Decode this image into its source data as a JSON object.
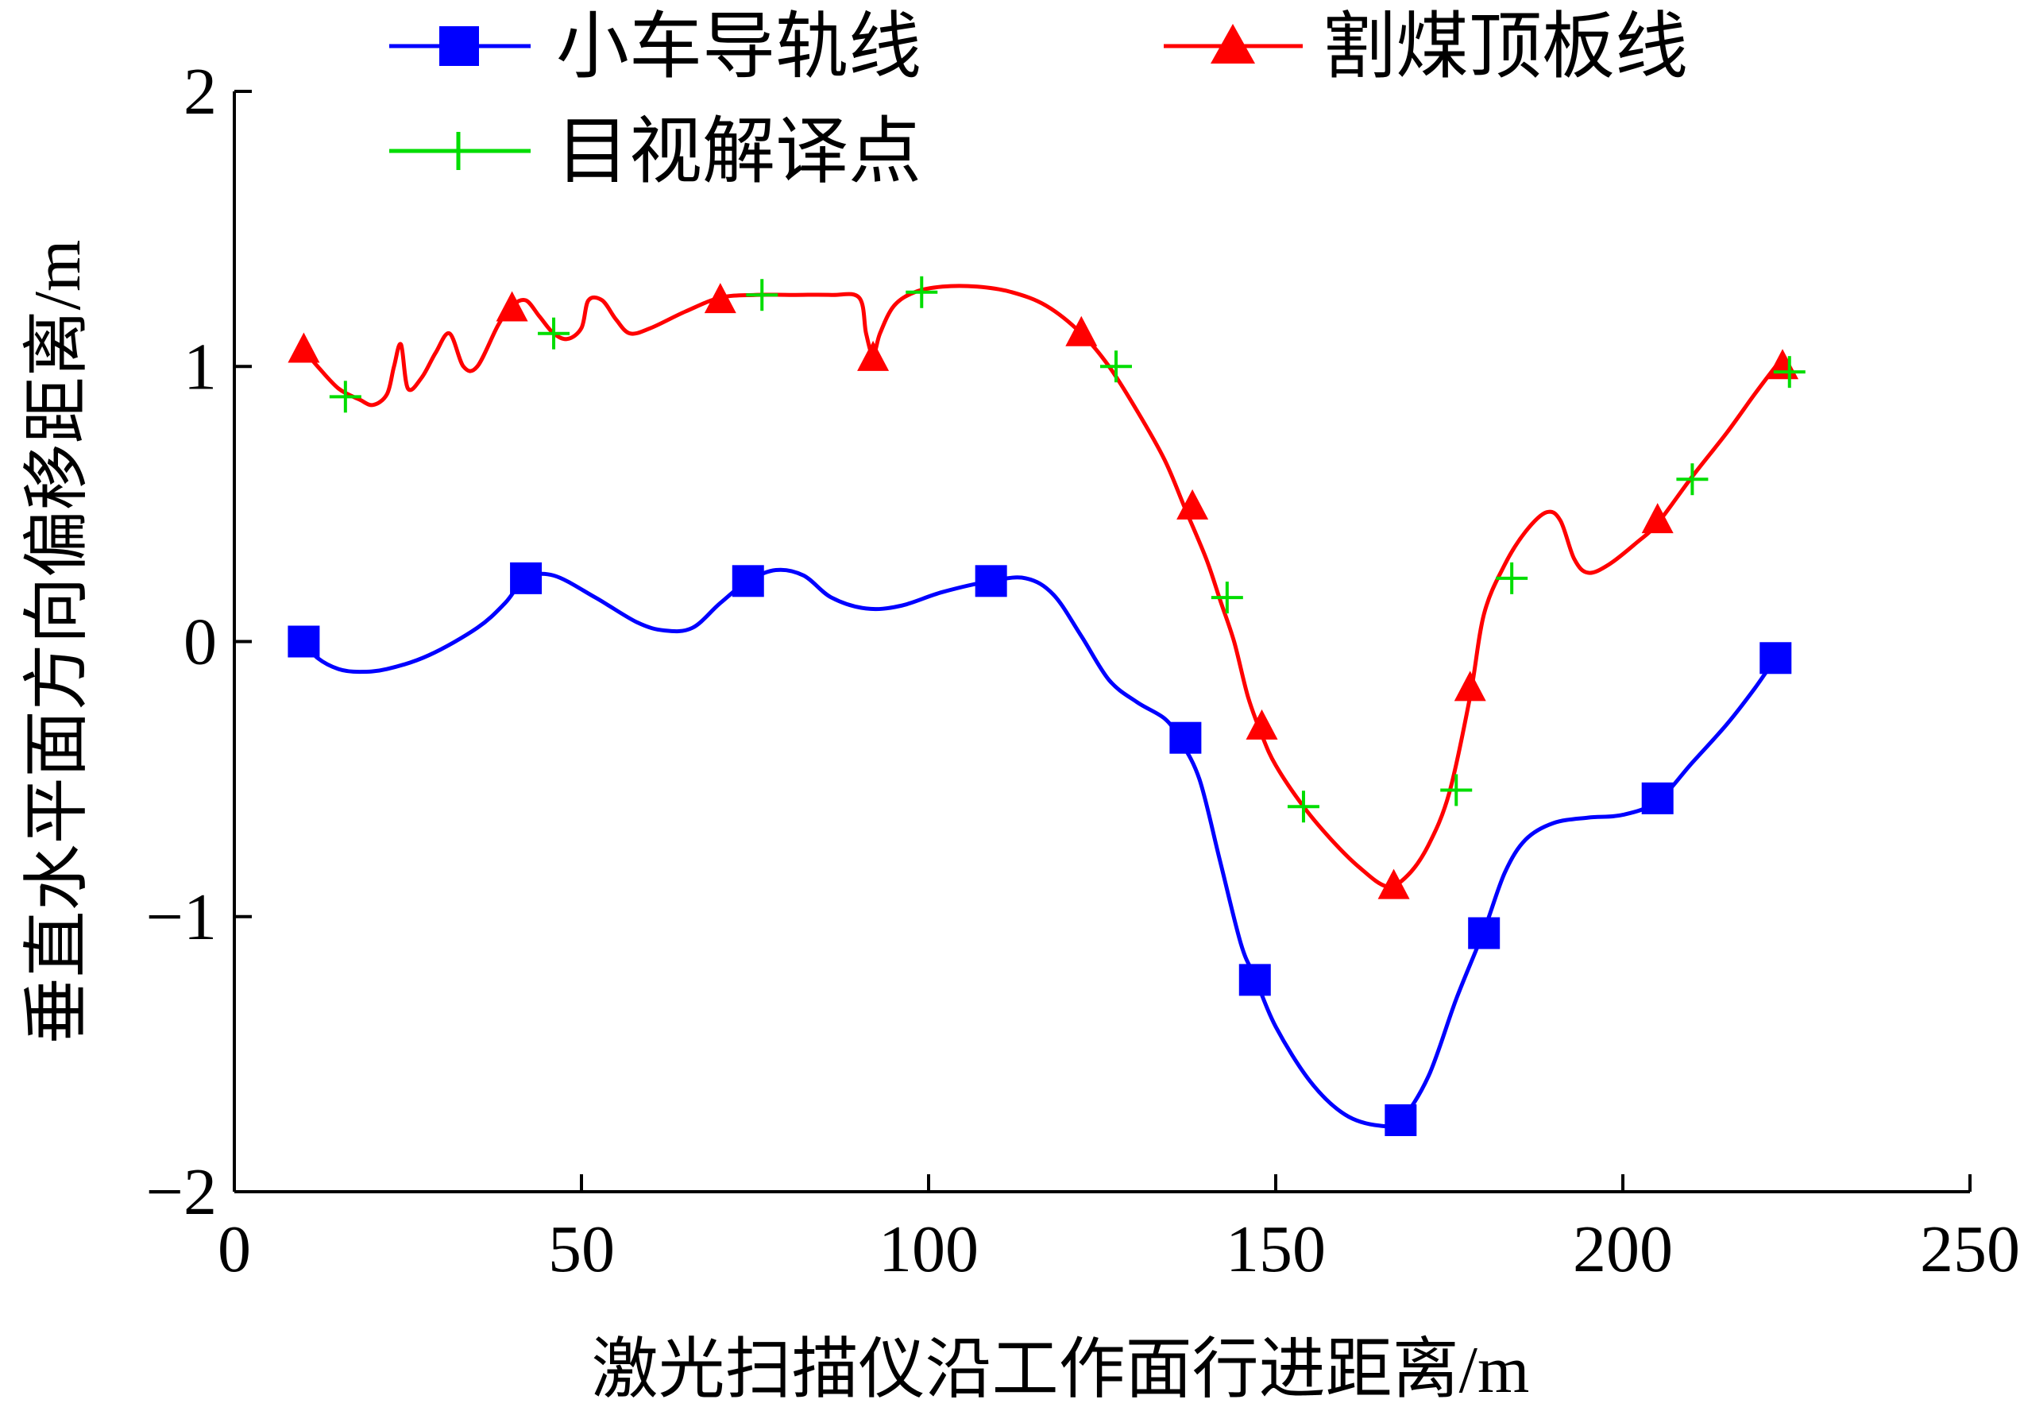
{
  "chart_data": {
    "type": "line",
    "xlabel": "激光扫描仪沿工作面行进距离/m",
    "ylabel": "垂直水平面方向偏移距离/m",
    "xlim": [
      0,
      250
    ],
    "ylim": [
      -2,
      2
    ],
    "xticks": [
      0,
      50,
      100,
      150,
      200,
      250
    ],
    "xtick_labels": [
      "0",
      "50",
      "100",
      "150",
      "200",
      "250"
    ],
    "yticks": [
      -2,
      -1,
      0,
      1,
      2
    ],
    "ytick_labels": [
      "−2",
      "−1",
      "0",
      "1",
      "2"
    ],
    "grid": false,
    "legend_position": "top",
    "series": [
      {
        "name": "小车导轨线",
        "color": "#0000ff",
        "marker": "square",
        "curve": [
          [
            10,
            0
          ],
          [
            12,
            -0.06
          ],
          [
            15,
            -0.1
          ],
          [
            18,
            -0.11
          ],
          [
            22,
            -0.1
          ],
          [
            28,
            -0.05
          ],
          [
            35,
            0.05
          ],
          [
            39,
            0.14
          ],
          [
            42,
            0.23
          ],
          [
            46,
            0.24
          ],
          [
            52,
            0.16
          ],
          [
            58,
            0.07
          ],
          [
            62,
            0.04
          ],
          [
            66,
            0.05
          ],
          [
            70,
            0.14
          ],
          [
            74,
            0.22
          ],
          [
            78,
            0.26
          ],
          [
            82,
            0.24
          ],
          [
            86,
            0.16
          ],
          [
            91,
            0.12
          ],
          [
            96,
            0.13
          ],
          [
            102,
            0.18
          ],
          [
            109,
            0.22
          ],
          [
            114,
            0.23
          ],
          [
            118,
            0.17
          ],
          [
            122,
            0.02
          ],
          [
            126,
            -0.14
          ],
          [
            130,
            -0.22
          ],
          [
            134,
            -0.28
          ],
          [
            136,
            -0.35
          ],
          [
            139,
            -0.5
          ],
          [
            142,
            -0.8
          ],
          [
            145,
            -1.1
          ],
          [
            147,
            -1.22
          ],
          [
            150,
            -1.4
          ],
          [
            155,
            -1.6
          ],
          [
            160,
            -1.72
          ],
          [
            165,
            -1.76
          ],
          [
            168,
            -1.74
          ],
          [
            172,
            -1.58
          ],
          [
            176,
            -1.3
          ],
          [
            180,
            -1.05
          ],
          [
            183,
            -0.84
          ],
          [
            186,
            -0.72
          ],
          [
            190,
            -0.66
          ],
          [
            195,
            -0.64
          ],
          [
            200,
            -0.63
          ],
          [
            205,
            -0.58
          ],
          [
            210,
            -0.44
          ],
          [
            215,
            -0.3
          ],
          [
            219,
            -0.17
          ],
          [
            222,
            -0.06
          ]
        ],
        "markers": [
          [
            10,
            0
          ],
          [
            42,
            0.23
          ],
          [
            74,
            0.22
          ],
          [
            109,
            0.22
          ],
          [
            137,
            -0.35
          ],
          [
            147,
            -1.23
          ],
          [
            168,
            -1.74
          ],
          [
            180,
            -1.06
          ],
          [
            205,
            -0.57
          ],
          [
            222,
            -0.06
          ]
        ]
      },
      {
        "name": "割煤顶板线",
        "color": "#ff0000",
        "marker": "triangle",
        "curve": [
          [
            10,
            1.06
          ],
          [
            12,
            1.0
          ],
          [
            15,
            0.92
          ],
          [
            18,
            0.88
          ],
          [
            20,
            0.86
          ],
          [
            22,
            0.9
          ],
          [
            23,
            1.0
          ],
          [
            24,
            1.08
          ],
          [
            25,
            0.92
          ],
          [
            27,
            0.96
          ],
          [
            29,
            1.05
          ],
          [
            31,
            1.12
          ],
          [
            33,
            1.0
          ],
          [
            35,
            1.0
          ],
          [
            38,
            1.15
          ],
          [
            40,
            1.22
          ],
          [
            42,
            1.24
          ],
          [
            44,
            1.18
          ],
          [
            46,
            1.12
          ],
          [
            48,
            1.1
          ],
          [
            50,
            1.14
          ],
          [
            51,
            1.24
          ],
          [
            53,
            1.24
          ],
          [
            55,
            1.17
          ],
          [
            57,
            1.12
          ],
          [
            60,
            1.14
          ],
          [
            65,
            1.2
          ],
          [
            70,
            1.25
          ],
          [
            75,
            1.26
          ],
          [
            80,
            1.26
          ],
          [
            86,
            1.26
          ],
          [
            90,
            1.25
          ],
          [
            91,
            1.12
          ],
          [
            92,
            1.04
          ],
          [
            93,
            1.12
          ],
          [
            95,
            1.22
          ],
          [
            98,
            1.27
          ],
          [
            102,
            1.29
          ],
          [
            107,
            1.29
          ],
          [
            112,
            1.27
          ],
          [
            117,
            1.22
          ],
          [
            122,
            1.12
          ],
          [
            126,
            1.0
          ],
          [
            130,
            0.84
          ],
          [
            134,
            0.66
          ],
          [
            137,
            0.48
          ],
          [
            140,
            0.3
          ],
          [
            142,
            0.15
          ],
          [
            144,
            0.0
          ],
          [
            146,
            -0.2
          ],
          [
            148,
            -0.34
          ],
          [
            150,
            -0.45
          ],
          [
            154,
            -0.6
          ],
          [
            158,
            -0.72
          ],
          [
            162,
            -0.82
          ],
          [
            166,
            -0.89
          ],
          [
            169,
            -0.85
          ],
          [
            172,
            -0.74
          ],
          [
            175,
            -0.55
          ],
          [
            178,
            -0.2
          ],
          [
            180,
            0.1
          ],
          [
            183,
            0.28
          ],
          [
            186,
            0.4
          ],
          [
            189,
            0.47
          ],
          [
            191,
            0.44
          ],
          [
            193,
            0.3
          ],
          [
            195,
            0.25
          ],
          [
            198,
            0.28
          ],
          [
            202,
            0.36
          ],
          [
            205,
            0.43
          ],
          [
            210,
            0.6
          ],
          [
            215,
            0.76
          ],
          [
            219,
            0.9
          ],
          [
            222,
            1.0
          ]
        ],
        "markers": [
          [
            10,
            1.06
          ],
          [
            40,
            1.21
          ],
          [
            70,
            1.24
          ],
          [
            92,
            1.03
          ],
          [
            122,
            1.12
          ],
          [
            138,
            0.49
          ],
          [
            148,
            -0.31
          ],
          [
            167,
            -0.89
          ],
          [
            178,
            -0.17
          ],
          [
            205,
            0.44
          ],
          [
            223,
            1.0
          ]
        ]
      },
      {
        "name": "目视解译点",
        "color": "#00dd00",
        "marker": "plus",
        "points": [
          [
            16,
            0.89
          ],
          [
            46,
            1.12
          ],
          [
            76,
            1.26
          ],
          [
            99,
            1.27
          ],
          [
            127,
            1.0
          ],
          [
            143,
            0.16
          ],
          [
            154,
            -0.6
          ],
          [
            176,
            -0.54
          ],
          [
            184,
            0.23
          ],
          [
            210,
            0.59
          ],
          [
            224,
            0.98
          ]
        ]
      }
    ]
  }
}
